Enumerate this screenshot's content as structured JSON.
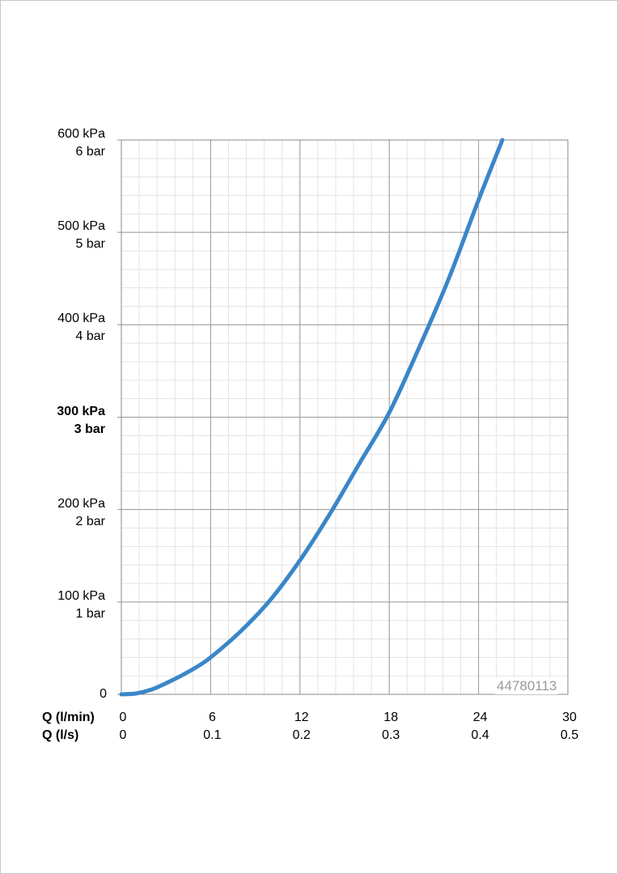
{
  "chart_data": {
    "type": "line",
    "x_axis_rows": [
      {
        "label": "Q (l/min)",
        "ticks": [
          "0",
          "6",
          "12",
          "18",
          "24",
          "30"
        ],
        "range": [
          0,
          30
        ]
      },
      {
        "label": "Q (l/s)",
        "ticks": [
          "0",
          "0.1",
          "0.2",
          "0.3",
          "0.4",
          "0.5"
        ],
        "range": [
          0,
          0.5
        ]
      }
    ],
    "y_axis_labels": [
      {
        "value": 0,
        "lines": [
          "0"
        ],
        "bold": false
      },
      {
        "value": 100,
        "lines": [
          "100 kPa",
          "1 bar"
        ],
        "bold": false
      },
      {
        "value": 200,
        "lines": [
          "200 kPa",
          "2 bar"
        ],
        "bold": false
      },
      {
        "value": 300,
        "lines": [
          "300 kPa",
          "3 bar"
        ],
        "bold": true
      },
      {
        "value": 400,
        "lines": [
          "400 kPa",
          "4 bar"
        ],
        "bold": false
      },
      {
        "value": 500,
        "lines": [
          "500 kPa",
          "5 bar"
        ],
        "bold": false
      },
      {
        "value": 600,
        "lines": [
          "600 kPa",
          "6 bar"
        ],
        "bold": false
      }
    ],
    "ylim": [
      0,
      600
    ],
    "xlim": [
      0,
      30
    ],
    "grid": true,
    "annotation": "44780113",
    "series": [
      {
        "color": "#3a86c8",
        "x": [
          0,
          1,
          2,
          3,
          4,
          5,
          6,
          8,
          10,
          12,
          14,
          16,
          18,
          20,
          22,
          24,
          25.6
        ],
        "y": [
          0,
          1,
          5,
          12,
          20,
          29,
          40,
          68,
          102,
          145,
          195,
          250,
          305,
          375,
          450,
          535,
          600
        ]
      }
    ]
  }
}
